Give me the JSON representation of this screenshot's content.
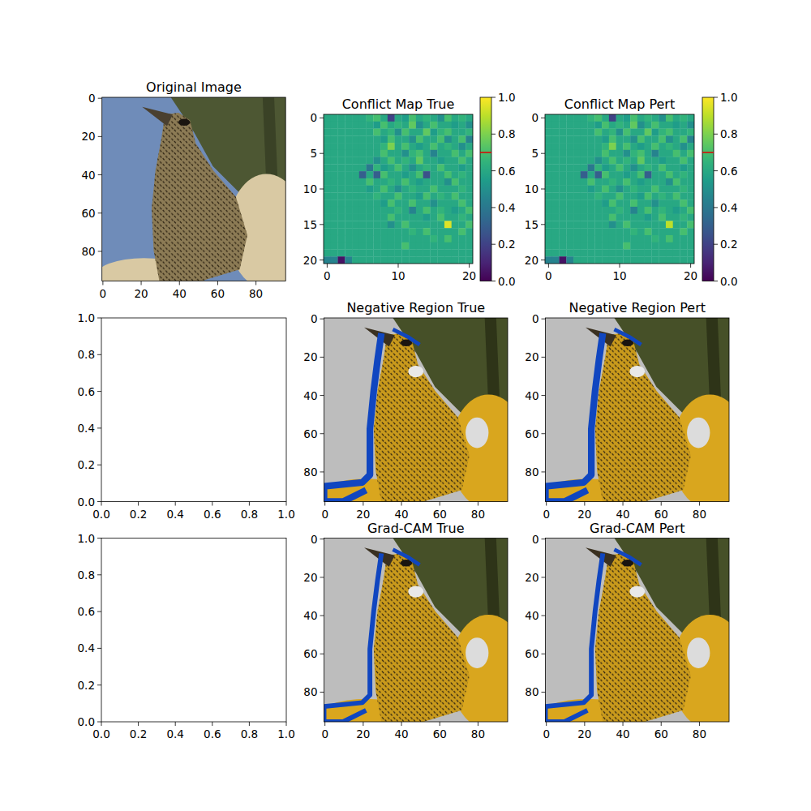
{
  "chart_data": [
    {
      "type": "image",
      "title": "Original Image",
      "xlim": [
        -0.5,
        95.5
      ],
      "ylim": [
        95.5,
        -0.5
      ],
      "xticks": [
        0,
        20,
        40,
        60,
        80
      ],
      "yticks": [
        0,
        20,
        40,
        60,
        80
      ]
    },
    {
      "type": "heatmap",
      "title": "Conflict Map True",
      "xlim": [
        -0.5,
        20.5
      ],
      "ylim": [
        20.5,
        -0.5
      ],
      "xticks": [
        0,
        10,
        20
      ],
      "yticks": [
        0,
        5,
        10,
        15,
        20
      ],
      "color_range": [
        0,
        1
      ],
      "color_ticks": [
        {
          "value": 0,
          "label": "0.0"
        },
        {
          "value": 0.2,
          "label": "0.2"
        },
        {
          "value": 0.4,
          "label": "0.4"
        },
        {
          "value": 0.6,
          "label": "0.6"
        },
        {
          "value": 0.8,
          "label": "0.8"
        },
        {
          "value": 1,
          "label": "1.0"
        }
      ],
      "color_marker": 0.7,
      "cells": [
        [
          0.6,
          0.6,
          0.6,
          0.6,
          0.6,
          0.6,
          0.65,
          0.7,
          0.6,
          0.2,
          0.6,
          0.55,
          0.7,
          0.6,
          0.65,
          0.6,
          0.5,
          0.7,
          0.6,
          0.65,
          0.6
        ],
        [
          0.6,
          0.6,
          0.6,
          0.6,
          0.6,
          0.6,
          0.6,
          0.55,
          0.7,
          0.6,
          0.65,
          0.6,
          0.75,
          0.5,
          0.6,
          0.7,
          0.6,
          0.6,
          0.55,
          0.6,
          0.5
        ],
        [
          0.6,
          0.6,
          0.6,
          0.6,
          0.6,
          0.6,
          0.6,
          0.7,
          0.6,
          0.65,
          0.5,
          0.7,
          0.6,
          0.6,
          0.75,
          0.55,
          0.65,
          0.7,
          0.6,
          0.6,
          0.65
        ],
        [
          0.6,
          0.6,
          0.6,
          0.6,
          0.6,
          0.6,
          0.6,
          0.6,
          0.55,
          0.7,
          0.6,
          0.6,
          0.5,
          0.7,
          0.6,
          0.6,
          0.7,
          0.5,
          0.6,
          0.7,
          0.45
        ],
        [
          0.6,
          0.6,
          0.6,
          0.6,
          0.6,
          0.6,
          0.6,
          0.6,
          0.65,
          0.8,
          0.6,
          0.7,
          0.6,
          0.55,
          0.6,
          0.7,
          0.6,
          0.65,
          0.6,
          0.5,
          0.6
        ],
        [
          0.6,
          0.6,
          0.6,
          0.6,
          0.6,
          0.6,
          0.6,
          0.6,
          0.7,
          0.6,
          0.6,
          0.5,
          0.65,
          0.7,
          0.6,
          0.45,
          0.6,
          0.6,
          0.7,
          0.6,
          0.7
        ],
        [
          0.6,
          0.6,
          0.6,
          0.6,
          0.6,
          0.6,
          0.6,
          0.5,
          0.6,
          0.7,
          0.6,
          0.65,
          0.6,
          0.75,
          0.6,
          0.6,
          0.55,
          0.6,
          0.6,
          0.7,
          0.6
        ],
        [
          0.6,
          0.6,
          0.6,
          0.6,
          0.6,
          0.6,
          0.4,
          0.65,
          0.55,
          0.6,
          0.7,
          0.6,
          0.5,
          0.6,
          0.65,
          0.6,
          0.7,
          0.6,
          0.6,
          0.55,
          0.6
        ],
        [
          0.6,
          0.6,
          0.6,
          0.6,
          0.6,
          0.3,
          0.6,
          0.3,
          0.7,
          0.6,
          0.6,
          0.55,
          0.6,
          0.7,
          0.25,
          0.6,
          0.6,
          0.7,
          0.6,
          0.65,
          0.6
        ],
        [
          0.6,
          0.6,
          0.6,
          0.6,
          0.6,
          0.6,
          0.7,
          0.6,
          0.6,
          0.65,
          0.6,
          0.7,
          0.6,
          0.55,
          0.6,
          0.6,
          0.6,
          0.5,
          0.7,
          0.6,
          0.6
        ],
        [
          0.6,
          0.6,
          0.6,
          0.6,
          0.6,
          0.6,
          0.55,
          0.6,
          0.7,
          0.6,
          0.5,
          0.6,
          0.65,
          0.6,
          0.6,
          0.7,
          0.6,
          0.6,
          0.6,
          0.65,
          0.6
        ],
        [
          0.6,
          0.6,
          0.6,
          0.6,
          0.6,
          0.6,
          0.6,
          0.65,
          0.6,
          0.6,
          0.7,
          0.6,
          0.6,
          0.55,
          0.7,
          0.6,
          0.65,
          0.6,
          0.7,
          0.6,
          0.6
        ],
        [
          0.6,
          0.6,
          0.6,
          0.6,
          0.6,
          0.6,
          0.6,
          0.6,
          0.55,
          0.7,
          0.6,
          0.6,
          0.7,
          0.6,
          0.6,
          0.5,
          0.6,
          0.6,
          0.6,
          0.7,
          0.6
        ],
        [
          0.6,
          0.6,
          0.6,
          0.6,
          0.6,
          0.6,
          0.6,
          0.6,
          0.6,
          0.6,
          0.65,
          0.6,
          0.45,
          0.6,
          0.7,
          0.6,
          0.65,
          0.6,
          0.55,
          0.6,
          0.7
        ],
        [
          0.6,
          0.6,
          0.6,
          0.6,
          0.6,
          0.6,
          0.6,
          0.6,
          0.6,
          0.7,
          0.6,
          0.6,
          0.6,
          0.6,
          0.55,
          0.6,
          0.7,
          0.6,
          0.6,
          0.65,
          0.6
        ],
        [
          0.6,
          0.6,
          0.6,
          0.6,
          0.6,
          0.6,
          0.6,
          0.6,
          0.6,
          0.5,
          0.6,
          0.7,
          0.6,
          0.6,
          0.6,
          0.6,
          0.6,
          0.95,
          0.6,
          0.6,
          0.7
        ],
        [
          0.6,
          0.6,
          0.6,
          0.6,
          0.6,
          0.6,
          0.6,
          0.6,
          0.6,
          0.6,
          0.6,
          0.6,
          0.65,
          0.6,
          0.7,
          0.6,
          0.6,
          0.6,
          0.6,
          0.7,
          0.6
        ],
        [
          0.6,
          0.6,
          0.6,
          0.6,
          0.6,
          0.6,
          0.6,
          0.6,
          0.6,
          0.6,
          0.6,
          0.6,
          0.6,
          0.6,
          0.6,
          0.65,
          0.6,
          0.7,
          0.6,
          0.6,
          0.6
        ],
        [
          0.6,
          0.6,
          0.6,
          0.6,
          0.6,
          0.6,
          0.6,
          0.6,
          0.6,
          0.6,
          0.6,
          0.7,
          0.6,
          0.6,
          0.6,
          0.6,
          0.6,
          0.6,
          0.6,
          0.6,
          0.6
        ],
        [
          0.6,
          0.6,
          0.6,
          0.6,
          0.6,
          0.6,
          0.6,
          0.6,
          0.6,
          0.6,
          0.6,
          0.6,
          0.6,
          0.6,
          0.6,
          0.6,
          0.6,
          0.6,
          0.6,
          0.6,
          0.6
        ],
        [
          0.45,
          0.45,
          0.05,
          0.45,
          0.6,
          0.6,
          0.6,
          0.6,
          0.6,
          0.6,
          0.6,
          0.6,
          0.6,
          0.6,
          0.6,
          0.6,
          0.6,
          0.6,
          0.6,
          0.6,
          0.6
        ]
      ]
    },
    {
      "type": "heatmap",
      "title": "Conflict Map Pert",
      "xlim": [
        -0.5,
        20.5
      ],
      "ylim": [
        20.5,
        -0.5
      ],
      "xticks": [
        0,
        10,
        20
      ],
      "yticks": [
        0,
        5,
        10,
        15,
        20
      ],
      "color_range": [
        0,
        1
      ],
      "color_ticks": [
        {
          "value": 0,
          "label": "0.0"
        },
        {
          "value": 0.2,
          "label": "0.2"
        },
        {
          "value": 0.4,
          "label": "0.4"
        },
        {
          "value": 0.6,
          "label": "0.6"
        },
        {
          "value": 0.8,
          "label": "0.8"
        },
        {
          "value": 1,
          "label": "1.0"
        }
      ],
      "color_marker": 0.7,
      "cells": [
        [
          0.6,
          0.6,
          0.6,
          0.6,
          0.6,
          0.6,
          0.65,
          0.7,
          0.6,
          0.2,
          0.6,
          0.55,
          0.7,
          0.6,
          0.65,
          0.6,
          0.5,
          0.7,
          0.6,
          0.65,
          0.6
        ],
        [
          0.6,
          0.6,
          0.6,
          0.6,
          0.6,
          0.6,
          0.6,
          0.55,
          0.7,
          0.6,
          0.65,
          0.6,
          0.75,
          0.5,
          0.6,
          0.7,
          0.6,
          0.6,
          0.55,
          0.6,
          0.5
        ],
        [
          0.6,
          0.6,
          0.6,
          0.6,
          0.6,
          0.6,
          0.6,
          0.7,
          0.6,
          0.65,
          0.5,
          0.7,
          0.6,
          0.6,
          0.75,
          0.55,
          0.65,
          0.7,
          0.6,
          0.6,
          0.65
        ],
        [
          0.6,
          0.6,
          0.6,
          0.6,
          0.6,
          0.6,
          0.6,
          0.6,
          0.55,
          0.7,
          0.6,
          0.6,
          0.5,
          0.7,
          0.6,
          0.6,
          0.7,
          0.5,
          0.6,
          0.7,
          0.45
        ],
        [
          0.6,
          0.6,
          0.6,
          0.6,
          0.6,
          0.6,
          0.6,
          0.6,
          0.65,
          0.8,
          0.6,
          0.7,
          0.6,
          0.55,
          0.6,
          0.7,
          0.6,
          0.65,
          0.6,
          0.5,
          0.6
        ],
        [
          0.6,
          0.6,
          0.6,
          0.6,
          0.6,
          0.6,
          0.6,
          0.6,
          0.7,
          0.6,
          0.6,
          0.5,
          0.65,
          0.7,
          0.6,
          0.45,
          0.6,
          0.6,
          0.7,
          0.6,
          0.7
        ],
        [
          0.6,
          0.6,
          0.6,
          0.6,
          0.6,
          0.6,
          0.6,
          0.5,
          0.6,
          0.7,
          0.6,
          0.65,
          0.6,
          0.75,
          0.6,
          0.6,
          0.55,
          0.6,
          0.6,
          0.7,
          0.6
        ],
        [
          0.6,
          0.6,
          0.6,
          0.6,
          0.6,
          0.6,
          0.4,
          0.65,
          0.55,
          0.6,
          0.7,
          0.6,
          0.5,
          0.6,
          0.65,
          0.6,
          0.7,
          0.6,
          0.6,
          0.55,
          0.6
        ],
        [
          0.6,
          0.6,
          0.6,
          0.6,
          0.6,
          0.3,
          0.6,
          0.3,
          0.7,
          0.6,
          0.6,
          0.55,
          0.6,
          0.7,
          0.3,
          0.6,
          0.6,
          0.7,
          0.6,
          0.65,
          0.6
        ],
        [
          0.6,
          0.6,
          0.6,
          0.6,
          0.6,
          0.6,
          0.7,
          0.6,
          0.6,
          0.65,
          0.6,
          0.7,
          0.6,
          0.55,
          0.6,
          0.6,
          0.6,
          0.5,
          0.7,
          0.6,
          0.6
        ],
        [
          0.6,
          0.6,
          0.6,
          0.6,
          0.6,
          0.6,
          0.55,
          0.6,
          0.7,
          0.6,
          0.5,
          0.6,
          0.65,
          0.6,
          0.6,
          0.7,
          0.6,
          0.6,
          0.6,
          0.65,
          0.6
        ],
        [
          0.6,
          0.6,
          0.6,
          0.6,
          0.6,
          0.6,
          0.6,
          0.65,
          0.6,
          0.6,
          0.7,
          0.6,
          0.6,
          0.55,
          0.7,
          0.6,
          0.65,
          0.6,
          0.7,
          0.6,
          0.6
        ],
        [
          0.6,
          0.6,
          0.6,
          0.6,
          0.6,
          0.6,
          0.6,
          0.6,
          0.55,
          0.7,
          0.6,
          0.6,
          0.7,
          0.6,
          0.6,
          0.5,
          0.6,
          0.6,
          0.6,
          0.7,
          0.6
        ],
        [
          0.6,
          0.6,
          0.6,
          0.6,
          0.6,
          0.6,
          0.6,
          0.6,
          0.6,
          0.6,
          0.65,
          0.6,
          0.45,
          0.6,
          0.7,
          0.6,
          0.65,
          0.6,
          0.55,
          0.6,
          0.7
        ],
        [
          0.6,
          0.6,
          0.6,
          0.6,
          0.6,
          0.6,
          0.6,
          0.6,
          0.6,
          0.7,
          0.6,
          0.6,
          0.6,
          0.6,
          0.55,
          0.6,
          0.7,
          0.6,
          0.6,
          0.65,
          0.6
        ],
        [
          0.6,
          0.6,
          0.6,
          0.6,
          0.6,
          0.6,
          0.6,
          0.6,
          0.6,
          0.5,
          0.6,
          0.7,
          0.6,
          0.6,
          0.6,
          0.6,
          0.6,
          0.9,
          0.6,
          0.6,
          0.7
        ],
        [
          0.6,
          0.6,
          0.6,
          0.6,
          0.6,
          0.6,
          0.6,
          0.6,
          0.6,
          0.6,
          0.6,
          0.6,
          0.65,
          0.6,
          0.7,
          0.6,
          0.6,
          0.6,
          0.6,
          0.7,
          0.6
        ],
        [
          0.6,
          0.6,
          0.6,
          0.6,
          0.6,
          0.6,
          0.6,
          0.6,
          0.6,
          0.6,
          0.6,
          0.6,
          0.6,
          0.6,
          0.6,
          0.65,
          0.6,
          0.7,
          0.6,
          0.6,
          0.6
        ],
        [
          0.6,
          0.6,
          0.6,
          0.6,
          0.6,
          0.6,
          0.6,
          0.6,
          0.6,
          0.6,
          0.6,
          0.7,
          0.6,
          0.6,
          0.6,
          0.6,
          0.6,
          0.6,
          0.6,
          0.6,
          0.6
        ],
        [
          0.6,
          0.6,
          0.6,
          0.6,
          0.6,
          0.6,
          0.6,
          0.6,
          0.6,
          0.6,
          0.6,
          0.6,
          0.6,
          0.6,
          0.6,
          0.6,
          0.6,
          0.6,
          0.6,
          0.6,
          0.6
        ],
        [
          0.45,
          0.45,
          0.05,
          0.45,
          0.6,
          0.6,
          0.6,
          0.6,
          0.6,
          0.6,
          0.6,
          0.6,
          0.6,
          0.6,
          0.6,
          0.6,
          0.6,
          0.6,
          0.6,
          0.6,
          0.6
        ]
      ]
    },
    {
      "type": "empty",
      "xlim": [
        0,
        1
      ],
      "ylim": [
        0,
        1
      ],
      "xticks": [
        {
          "value": 0,
          "label": "0.0"
        },
        {
          "value": 0.2,
          "label": "0.2"
        },
        {
          "value": 0.4,
          "label": "0.4"
        },
        {
          "value": 0.6,
          "label": "0.6"
        },
        {
          "value": 0.8,
          "label": "0.8"
        },
        {
          "value": 1,
          "label": "1.0"
        }
      ],
      "yticks": [
        {
          "value": 0,
          "label": "0.0"
        },
        {
          "value": 0.2,
          "label": "0.2"
        },
        {
          "value": 0.4,
          "label": "0.4"
        },
        {
          "value": 0.6,
          "label": "0.6"
        },
        {
          "value": 0.8,
          "label": "0.8"
        },
        {
          "value": 1,
          "label": "1.0"
        }
      ]
    },
    {
      "type": "overlay",
      "title": "Negative Region True",
      "xlim": [
        -0.5,
        95.5
      ],
      "ylim": [
        95.5,
        -0.5
      ],
      "xticks": [
        0,
        20,
        40,
        60,
        80
      ],
      "yticks": [
        0,
        20,
        40,
        60,
        80
      ]
    },
    {
      "type": "overlay",
      "title": "Negative Region Pert",
      "xlim": [
        -0.5,
        95.5
      ],
      "ylim": [
        95.5,
        -0.5
      ],
      "xticks": [
        0,
        20,
        40,
        60,
        80
      ],
      "yticks": [
        0,
        20,
        40,
        60,
        80
      ]
    },
    {
      "type": "empty",
      "xlim": [
        0,
        1
      ],
      "ylim": [
        0,
        1
      ],
      "xticks": [
        {
          "value": 0,
          "label": "0.0"
        },
        {
          "value": 0.2,
          "label": "0.2"
        },
        {
          "value": 0.4,
          "label": "0.4"
        },
        {
          "value": 0.6,
          "label": "0.6"
        },
        {
          "value": 0.8,
          "label": "0.8"
        },
        {
          "value": 1,
          "label": "1.0"
        }
      ],
      "yticks": [
        {
          "value": 0,
          "label": "0.0"
        },
        {
          "value": 0.2,
          "label": "0.2"
        },
        {
          "value": 0.4,
          "label": "0.4"
        },
        {
          "value": 0.6,
          "label": "0.6"
        },
        {
          "value": 0.8,
          "label": "0.8"
        },
        {
          "value": 1,
          "label": "1.0"
        }
      ]
    },
    {
      "type": "overlay",
      "title": "Grad-CAM True",
      "xlim": [
        -0.5,
        95.5
      ],
      "ylim": [
        95.5,
        -0.5
      ],
      "xticks": [
        0,
        20,
        40,
        60,
        80
      ],
      "yticks": [
        0,
        20,
        40,
        60,
        80
      ]
    },
    {
      "type": "overlay",
      "title": "Grad-CAM Pert",
      "xlim": [
        -0.5,
        95.5
      ],
      "ylim": [
        95.5,
        -0.5
      ],
      "xticks": [
        0,
        20,
        40,
        60,
        80
      ],
      "yticks": [
        0,
        20,
        40,
        60,
        80
      ]
    }
  ]
}
